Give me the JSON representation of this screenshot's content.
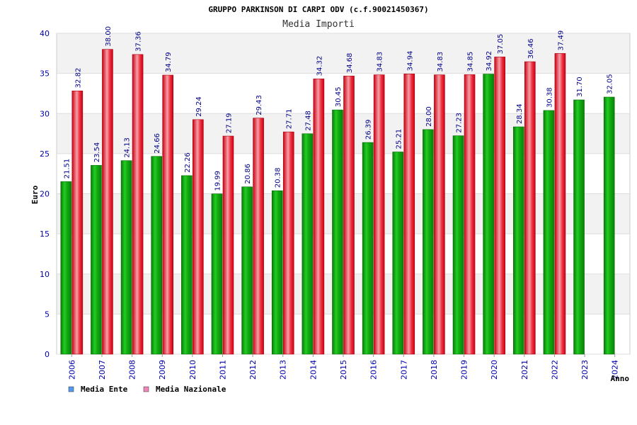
{
  "chart_data": {
    "type": "bar",
    "title": "GRUPPO PARKINSON DI CARPI ODV (c.f.90021450367)",
    "subtitle": "Media Importi",
    "xlabel": "Anno",
    "ylabel": "Euro",
    "ylim": [
      0,
      40
    ],
    "yticks": [
      0,
      5,
      10,
      15,
      20,
      25,
      30,
      35,
      40
    ],
    "categories": [
      "2006",
      "2007",
      "2008",
      "2009",
      "2010",
      "2011",
      "2012",
      "2013",
      "2014",
      "2015",
      "2016",
      "2017",
      "2018",
      "2019",
      "2020",
      "2021",
      "2022",
      "2023",
      "2024"
    ],
    "series": [
      {
        "name": "Media Ente",
        "legend_color": "#5599ee",
        "bar_color": "#11aa11",
        "values": [
          21.51,
          23.54,
          24.13,
          24.66,
          22.26,
          19.99,
          20.86,
          20.38,
          27.48,
          30.45,
          26.39,
          25.21,
          28.0,
          27.23,
          34.92,
          28.34,
          30.38,
          31.7,
          32.05
        ],
        "labels": [
          "21.51",
          "23.54",
          "24.13",
          "24.66",
          "22.26",
          "19.99",
          "20.86",
          "20.38",
          "27.48",
          "30.45",
          "26.39",
          "25.21",
          "28.00",
          "27.23",
          "34.92",
          "28.34",
          "30.38",
          "31.70",
          "32.05"
        ]
      },
      {
        "name": "Media Nazionale",
        "legend_color": "#ee88bb",
        "bar_color": "#ee2233",
        "values": [
          32.82,
          38.0,
          37.36,
          34.79,
          29.24,
          27.19,
          29.43,
          27.71,
          34.32,
          34.68,
          34.83,
          34.94,
          34.83,
          34.85,
          37.05,
          36.46,
          37.49,
          null,
          null
        ],
        "labels": [
          "32.82",
          "38.00",
          "37.36",
          "34.79",
          "29.24",
          "27.19",
          "29.43",
          "27.71",
          "34.32",
          "34.68",
          "34.83",
          "34.94",
          "34.83",
          "34.85",
          "37.05",
          "36.46",
          "37.49",
          null,
          null
        ]
      }
    ],
    "grid": true,
    "legend_position": "bottom-left"
  },
  "colors": {
    "axis_text": "#0000aa",
    "band_light": "#f2f2f2",
    "band_white": "#ffffff",
    "grid": "#dddddd"
  }
}
